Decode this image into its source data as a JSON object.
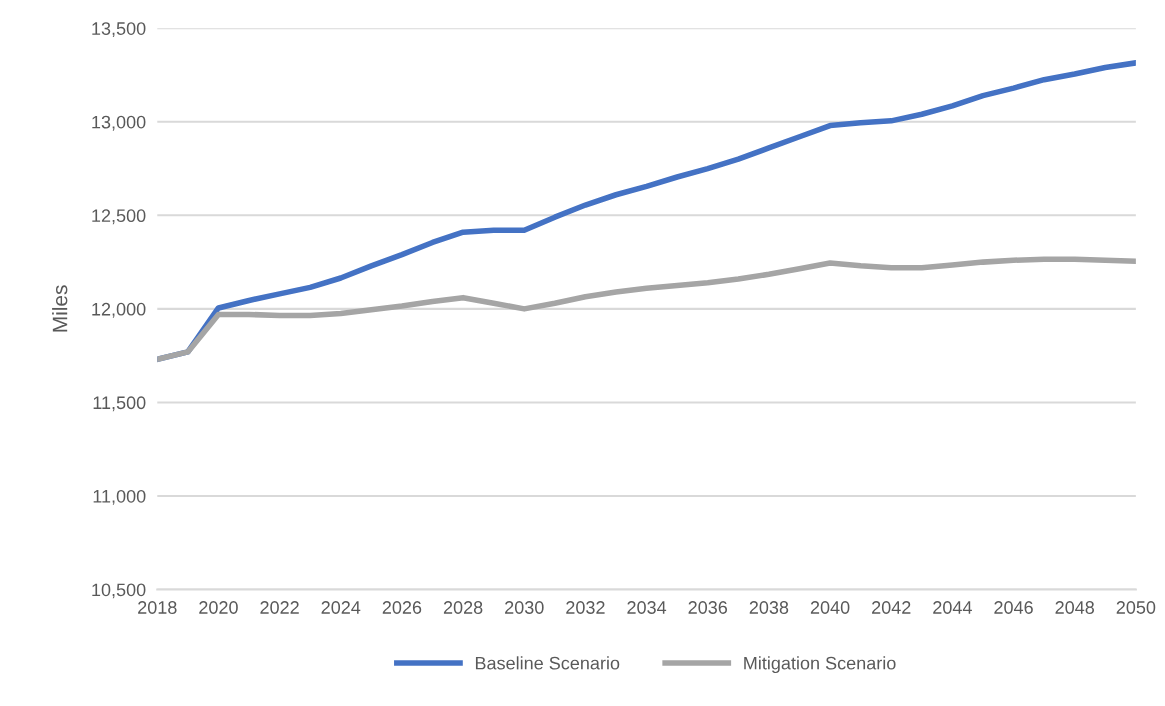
{
  "chart_data": {
    "type": "line",
    "ylabel": "Miles",
    "x": [
      2018,
      2019,
      2020,
      2021,
      2022,
      2023,
      2024,
      2025,
      2026,
      2027,
      2028,
      2029,
      2030,
      2031,
      2032,
      2033,
      2034,
      2035,
      2036,
      2037,
      2038,
      2039,
      2040,
      2041,
      2042,
      2043,
      2044,
      2045,
      2046,
      2047,
      2048,
      2049,
      2050
    ],
    "series": [
      {
        "name": "Baseline Scenario",
        "color": "#4472c4",
        "values": [
          11730,
          11770,
          12005,
          12045,
          12080,
          12115,
          12165,
          12230,
          12290,
          12355,
          12410,
          12420,
          12420,
          12490,
          12555,
          12610,
          12655,
          12705,
          12750,
          12800,
          12860,
          12920,
          12980,
          12995,
          13005,
          13040,
          13085,
          13140,
          13180,
          13225,
          13255,
          13290,
          13315
        ]
      },
      {
        "name": "Mitigation Scenario",
        "color": "#a5a5a5",
        "values": [
          11730,
          11770,
          11970,
          11970,
          11965,
          11965,
          11975,
          11995,
          12015,
          12040,
          12060,
          12030,
          12000,
          12030,
          12065,
          12090,
          12110,
          12125,
          12140,
          12160,
          12185,
          12215,
          12245,
          12230,
          12220,
          12220,
          12235,
          12250,
          12260,
          12265,
          12265,
          12260,
          12255
        ]
      }
    ],
    "xlim": [
      2018,
      2050
    ],
    "xticks": [
      2018,
      2020,
      2022,
      2024,
      2026,
      2028,
      2030,
      2032,
      2034,
      2036,
      2038,
      2040,
      2042,
      2044,
      2046,
      2048,
      2050
    ],
    "ylim": [
      10500,
      13500
    ],
    "yticks": [
      {
        "value": 10500,
        "label": "10,500"
      },
      {
        "value": 11000,
        "label": "11,000"
      },
      {
        "value": 11500,
        "label": "11,500"
      },
      {
        "value": 12000,
        "label": "12,000"
      },
      {
        "value": 12500,
        "label": "12,500"
      },
      {
        "value": 13000,
        "label": "13,000"
      },
      {
        "value": 13500,
        "label": "13,500"
      }
    ],
    "grid": "y",
    "legend": "bottom",
    "marker": "none",
    "line_style": "solid"
  }
}
